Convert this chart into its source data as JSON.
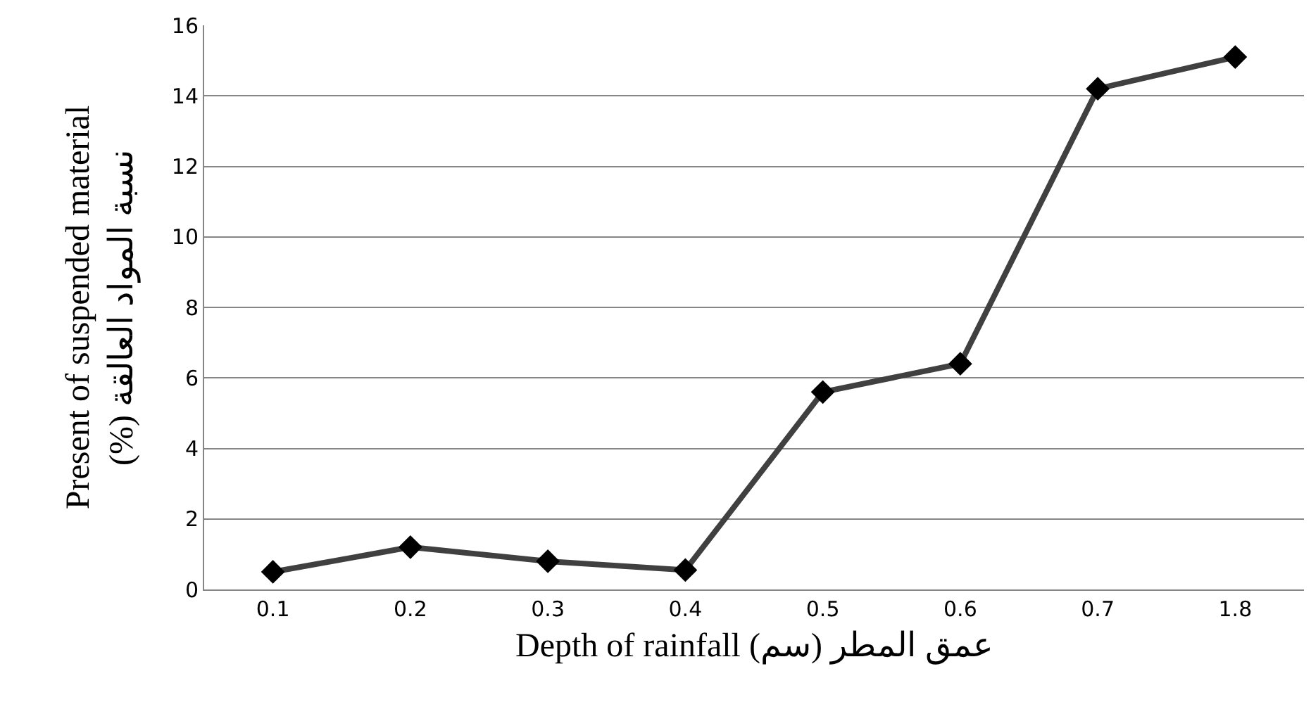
{
  "chart_data": {
    "type": "line",
    "xlabel": "Depth of rainfall عمق المطر (سم)",
    "ylabel": "Present of suspended material\n(%) نسبة المواد العالقة",
    "categories": [
      "0.1",
      "0.2",
      "0.3",
      "0.4",
      "0.5",
      "0.6",
      "0.7",
      "1.8"
    ],
    "series": [
      {
        "color": "#404040",
        "values": [
          0.5,
          1.2,
          0.8,
          0.55,
          5.6,
          6.4,
          14.2,
          15.1
        ]
      }
    ],
    "ylim": [
      0,
      16
    ],
    "yticks": [
      0,
      2,
      4,
      6,
      8,
      10,
      12,
      14,
      16
    ],
    "grid": "y",
    "marker": "diamond",
    "line_style": "solid",
    "legend": false
  }
}
